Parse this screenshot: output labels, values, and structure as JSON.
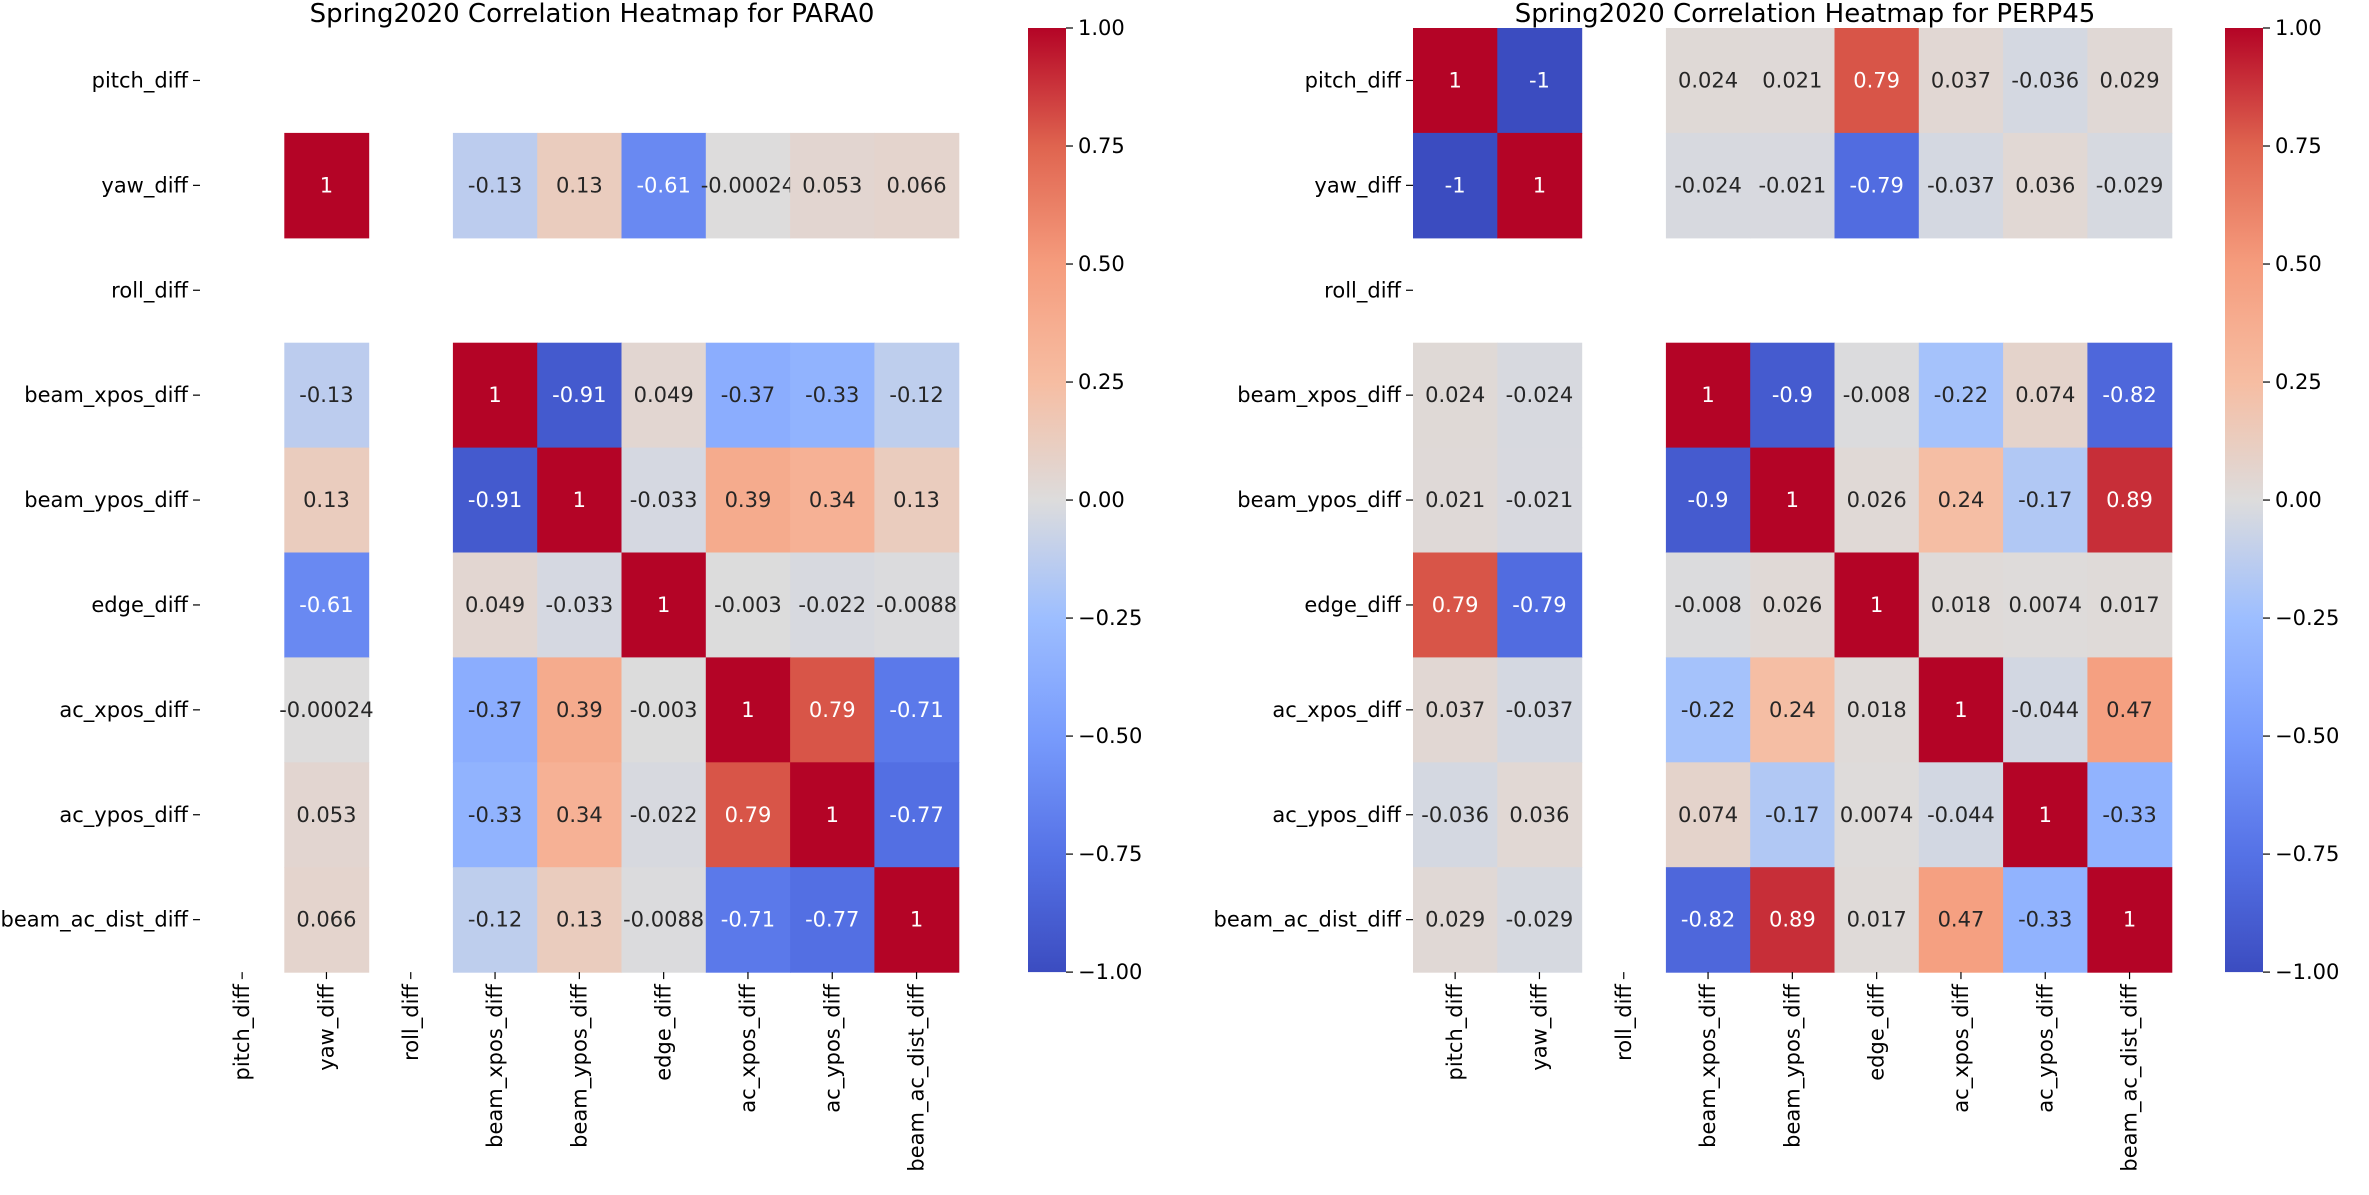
{
  "chart_data": [
    {
      "type": "heatmap",
      "title": "Spring2020 Correlation Heatmap for PARA0",
      "xlabel": "",
      "ylabel": "",
      "x": [
        "pitch_diff",
        "yaw_diff",
        "roll_diff",
        "beam_xpos_diff",
        "beam_ypos_diff",
        "edge_diff",
        "ac_xpos_diff",
        "ac_ypos_diff",
        "beam_ac_dist_diff"
      ],
      "y": [
        "pitch_diff",
        "yaw_diff",
        "roll_diff",
        "beam_xpos_diff",
        "beam_ypos_diff",
        "edge_diff",
        "ac_xpos_diff",
        "ac_ypos_diff",
        "beam_ac_dist_diff"
      ],
      "values": [
        [
          null,
          null,
          null,
          null,
          null,
          null,
          null,
          null,
          null
        ],
        [
          null,
          1,
          null,
          -0.13,
          0.13,
          -0.61,
          -0.00024,
          0.053,
          0.066
        ],
        [
          null,
          null,
          null,
          null,
          null,
          null,
          null,
          null,
          null
        ],
        [
          null,
          -0.13,
          null,
          1,
          -0.91,
          0.049,
          -0.37,
          -0.33,
          -0.12
        ],
        [
          null,
          0.13,
          null,
          -0.91,
          1,
          -0.033,
          0.39,
          0.34,
          0.13
        ],
        [
          null,
          -0.61,
          null,
          0.049,
          -0.033,
          1,
          -0.003,
          -0.022,
          -0.0088
        ],
        [
          null,
          -0.00024,
          null,
          -0.37,
          0.39,
          -0.003,
          1,
          0.79,
          -0.71
        ],
        [
          null,
          0.053,
          null,
          -0.33,
          0.34,
          -0.022,
          0.79,
          1,
          -0.77
        ],
        [
          null,
          0.066,
          null,
          -0.12,
          0.13,
          -0.0088,
          -0.71,
          -0.77,
          1
        ]
      ],
      "labels": [
        [
          null,
          null,
          null,
          null,
          null,
          null,
          null,
          null,
          null
        ],
        [
          null,
          "1",
          null,
          "-0.13",
          "0.13",
          "-0.61",
          "-0.00024",
          "0.053",
          "0.066"
        ],
        [
          null,
          null,
          null,
          null,
          null,
          null,
          null,
          null,
          null
        ],
        [
          null,
          "-0.13",
          null,
          "1",
          "-0.91",
          "0.049",
          "-0.37",
          "-0.33",
          "-0.12"
        ],
        [
          null,
          "0.13",
          null,
          "-0.91",
          "1",
          "-0.033",
          "0.39",
          "0.34",
          "0.13"
        ],
        [
          null,
          "-0.61",
          null,
          "0.049",
          "-0.033",
          "1",
          "-0.003",
          "-0.022",
          "-0.0088"
        ],
        [
          null,
          "-0.00024",
          null,
          "-0.37",
          "0.39",
          "-0.003",
          "1",
          "0.79",
          "-0.71"
        ],
        [
          null,
          "0.053",
          null,
          "-0.33",
          "0.34",
          "-0.022",
          "0.79",
          "1",
          "-0.77"
        ],
        [
          null,
          "0.066",
          null,
          "-0.12",
          "0.13",
          "-0.0088",
          "-0.71",
          "-0.77",
          "1"
        ]
      ],
      "colormap": "coolwarm",
      "vmin": -1,
      "vmax": 1,
      "colorbar_ticks": [
        "1.00",
        "0.75",
        "0.50",
        "0.25",
        "0.00",
        "−0.25",
        "−0.50",
        "−0.75",
        "−1.00"
      ],
      "colorbar_tick_values": [
        1.0,
        0.75,
        0.5,
        0.25,
        0.0,
        -0.25,
        -0.5,
        -0.75,
        -1.0
      ]
    },
    {
      "type": "heatmap",
      "title": "Spring2020 Correlation Heatmap for PERP45",
      "xlabel": "",
      "ylabel": "",
      "x": [
        "pitch_diff",
        "yaw_diff",
        "roll_diff",
        "beam_xpos_diff",
        "beam_ypos_diff",
        "edge_diff",
        "ac_xpos_diff",
        "ac_ypos_diff",
        "beam_ac_dist_diff"
      ],
      "y": [
        "pitch_diff",
        "yaw_diff",
        "roll_diff",
        "beam_xpos_diff",
        "beam_ypos_diff",
        "edge_diff",
        "ac_xpos_diff",
        "ac_ypos_diff",
        "beam_ac_dist_diff"
      ],
      "values": [
        [
          1,
          -1,
          null,
          0.024,
          0.021,
          0.79,
          0.037,
          -0.036,
          0.029
        ],
        [
          -1,
          1,
          null,
          -0.024,
          -0.021,
          -0.79,
          -0.037,
          0.036,
          -0.029
        ],
        [
          null,
          null,
          null,
          null,
          null,
          null,
          null,
          null,
          null
        ],
        [
          0.024,
          -0.024,
          null,
          1,
          -0.9,
          -0.008,
          -0.22,
          0.074,
          -0.82
        ],
        [
          0.021,
          -0.021,
          null,
          -0.9,
          1,
          0.026,
          0.24,
          -0.17,
          0.89
        ],
        [
          0.79,
          -0.79,
          null,
          -0.008,
          0.026,
          1,
          0.018,
          0.0074,
          0.017
        ],
        [
          0.037,
          -0.037,
          null,
          -0.22,
          0.24,
          0.018,
          1,
          -0.044,
          0.47
        ],
        [
          -0.036,
          0.036,
          null,
          0.074,
          -0.17,
          0.0074,
          -0.044,
          1,
          -0.33
        ],
        [
          0.029,
          -0.029,
          null,
          -0.82,
          0.89,
          0.017,
          0.47,
          -0.33,
          1
        ]
      ],
      "labels": [
        [
          "1",
          "-1",
          null,
          "0.024",
          "0.021",
          "0.79",
          "0.037",
          "-0.036",
          "0.029"
        ],
        [
          "-1",
          "1",
          null,
          "-0.024",
          "-0.021",
          "-0.79",
          "-0.037",
          "0.036",
          "-0.029"
        ],
        [
          null,
          null,
          null,
          null,
          null,
          null,
          null,
          null,
          null
        ],
        [
          "0.024",
          "-0.024",
          null,
          "1",
          "-0.9",
          "-0.008",
          "-0.22",
          "0.074",
          "-0.82"
        ],
        [
          "0.021",
          "-0.021",
          null,
          "-0.9",
          "1",
          "0.026",
          "0.24",
          "-0.17",
          "0.89"
        ],
        [
          "0.79",
          "-0.79",
          null,
          "-0.008",
          "0.026",
          "1",
          "0.018",
          "0.0074",
          "0.017"
        ],
        [
          "0.037",
          "-0.037",
          null,
          "-0.22",
          "0.24",
          "0.018",
          "1",
          "-0.044",
          "0.47"
        ],
        [
          "-0.036",
          "0.036",
          null,
          "0.074",
          "-0.17",
          "0.0074",
          "-0.044",
          "1",
          "-0.33"
        ],
        [
          "0.029",
          "-0.029",
          null,
          "-0.82",
          "0.89",
          "0.017",
          "0.47",
          "-0.33",
          "1"
        ]
      ],
      "colormap": "coolwarm",
      "vmin": -1,
      "vmax": 1,
      "colorbar_ticks": [
        "1.00",
        "0.75",
        "0.50",
        "0.25",
        "0.00",
        "−0.25",
        "−0.50",
        "−0.75",
        "−1.00"
      ],
      "colorbar_tick_values": [
        1.0,
        0.75,
        0.5,
        0.25,
        0.0,
        -0.25,
        -0.5,
        -0.75,
        -1.0
      ]
    }
  ]
}
